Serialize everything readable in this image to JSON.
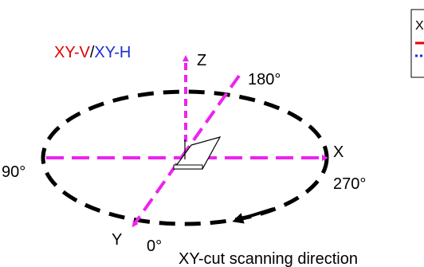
{
  "title": {
    "part1": "XY-V",
    "separator": "/",
    "part2": "XY-H"
  },
  "axes": {
    "z": "Z",
    "x": "X",
    "y": "Y"
  },
  "angles": {
    "a180": "180°",
    "a90": "90°",
    "a270": "270°",
    "a0": "0°"
  },
  "caption": "XY-cut scanning direction",
  "legend": {
    "text": "X"
  },
  "colors": {
    "title_red": "#e00000",
    "title_blue": "#1a2fd6",
    "axis_magenta": "#ee22ee",
    "ellipse": "#000000"
  }
}
